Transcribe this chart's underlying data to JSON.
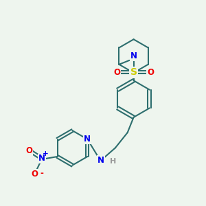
{
  "bg_color": "#eef5ee",
  "bond_color": "#2d6e6e",
  "bond_width": 1.5,
  "atom_colors": {
    "N": "#0000ee",
    "O": "#ee0000",
    "S": "#cccc00",
    "C": "#2d6e6e",
    "H": "#999999"
  },
  "font_size": 8.5,
  "figsize": [
    3.0,
    3.0
  ],
  "dpi": 100
}
